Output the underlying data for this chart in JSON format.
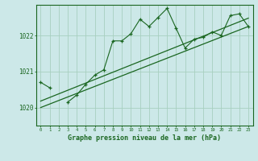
{
  "title": "Graphe pression niveau de la mer (hPa)",
  "background_color": "#cce8e8",
  "grid_color": "#a8cfc0",
  "line_color": "#1a6620",
  "x_values": [
    0,
    1,
    2,
    3,
    4,
    5,
    6,
    7,
    8,
    9,
    10,
    11,
    12,
    13,
    14,
    15,
    16,
    17,
    18,
    19,
    20,
    21,
    22,
    23
  ],
  "y_main": [
    1020.7,
    1020.55,
    null,
    1020.15,
    1020.35,
    1020.65,
    1020.9,
    1021.05,
    1021.85,
    1021.85,
    1022.05,
    1022.45,
    1022.25,
    1022.5,
    1022.75,
    1022.2,
    1021.65,
    1021.9,
    1021.95,
    1022.1,
    1022.0,
    1022.55,
    1022.6,
    1022.25
  ],
  "ylim": [
    1019.5,
    1022.85
  ],
  "yticks": [
    1020,
    1021,
    1022
  ],
  "xlim": [
    -0.5,
    23.5
  ],
  "trend1": [
    1020.0,
    1022.25
  ],
  "trend2": [
    1020.18,
    1022.48
  ]
}
